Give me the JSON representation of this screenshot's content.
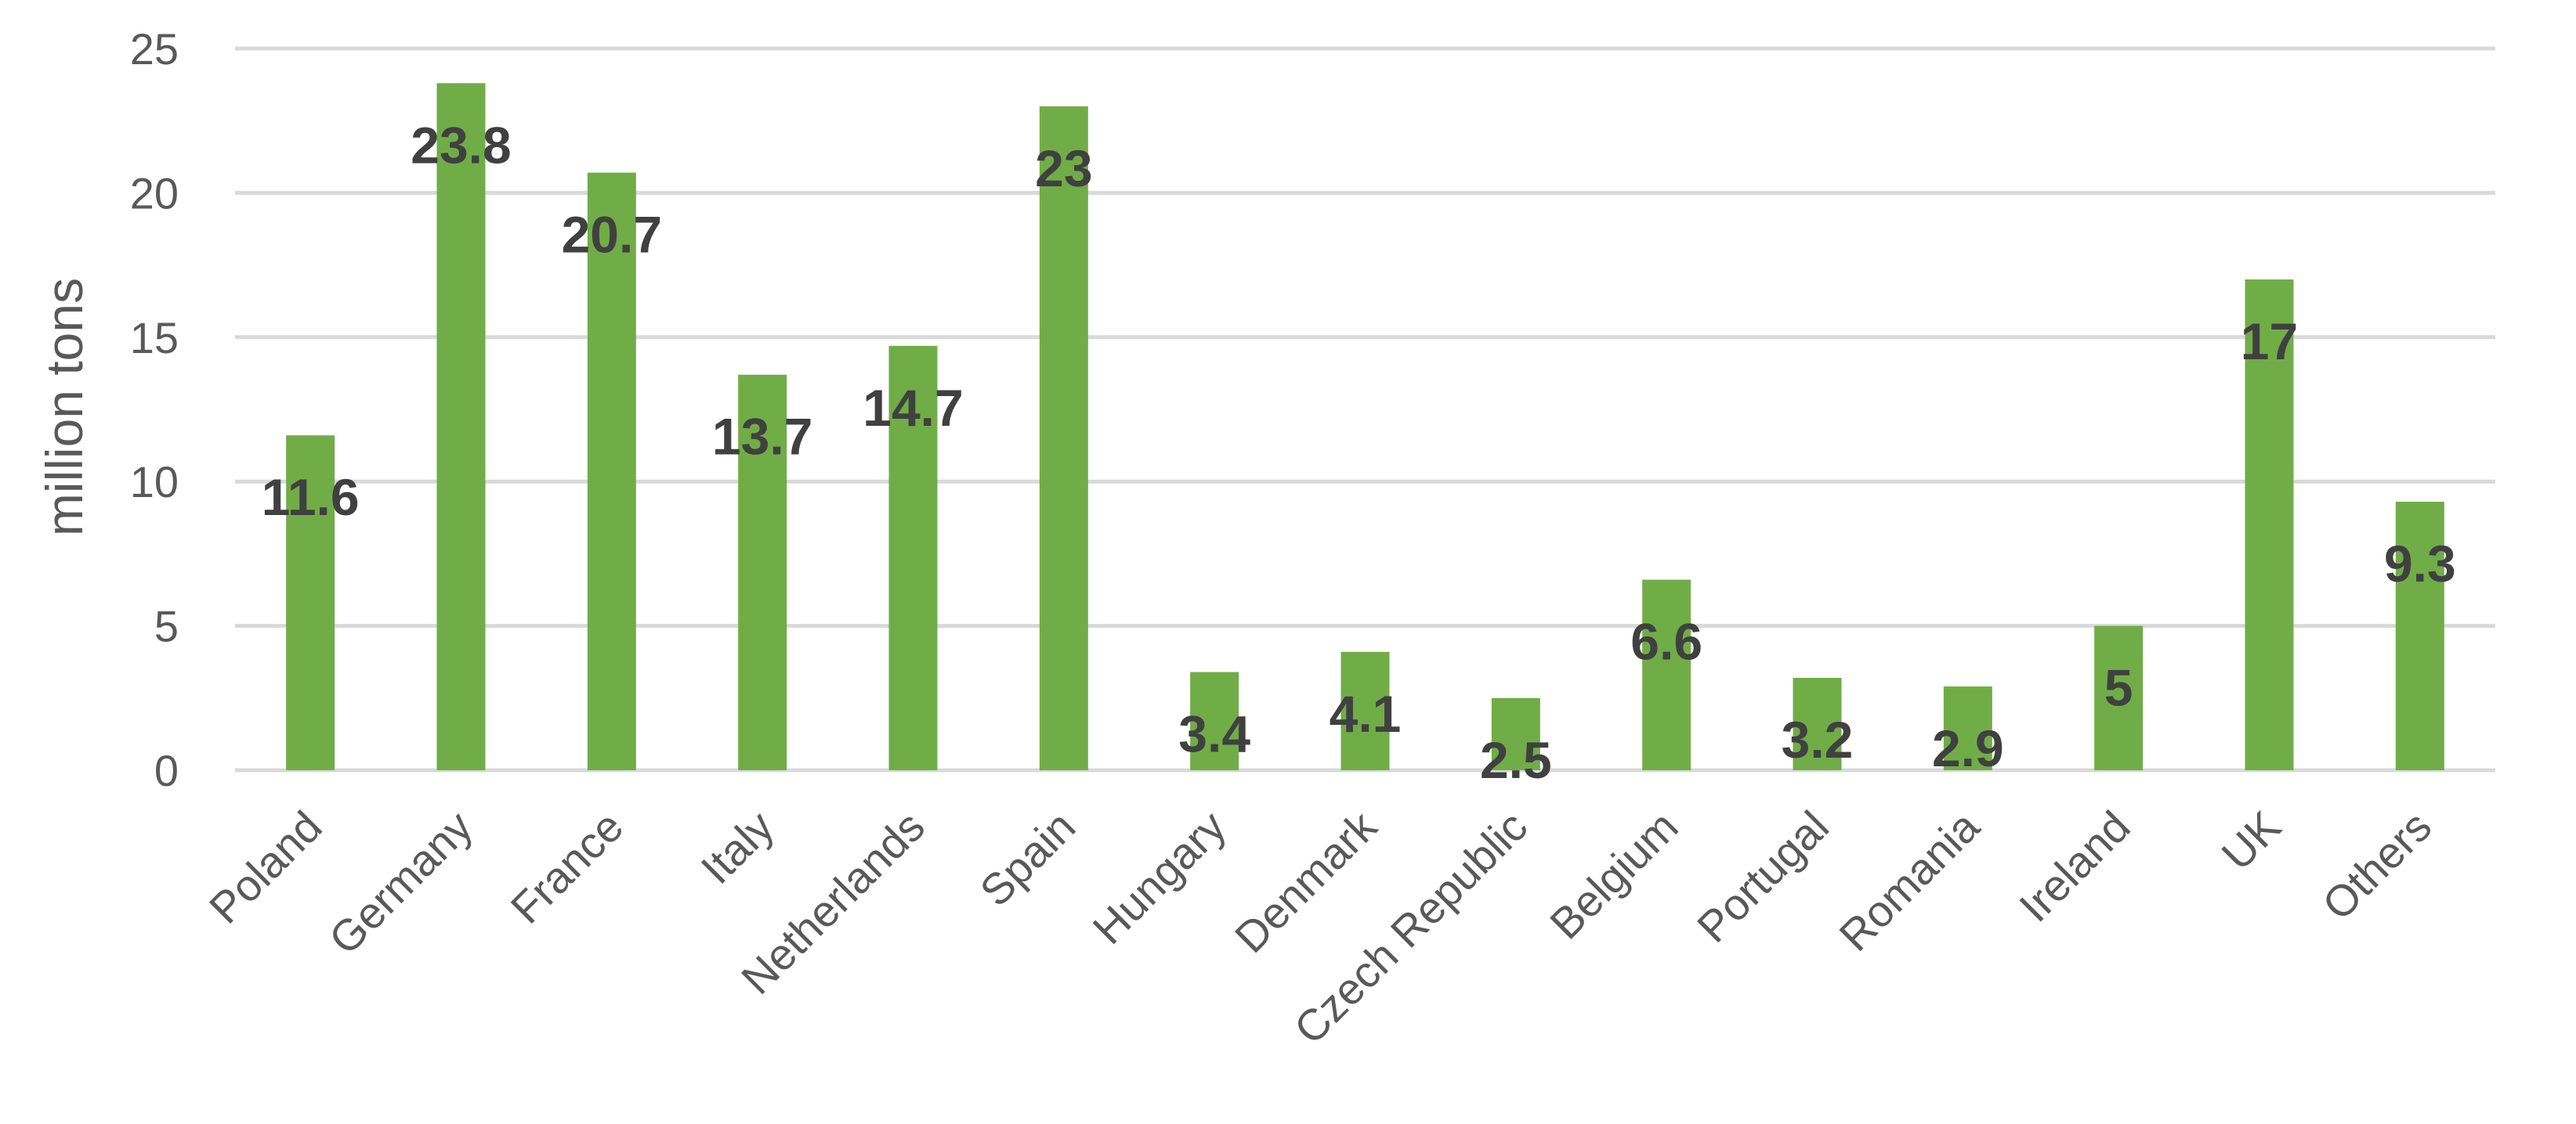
{
  "chart_data": {
    "type": "bar",
    "title": "",
    "xlabel": "",
    "ylabel": "million tons",
    "ylim": [
      0,
      25
    ],
    "yticks": [
      0,
      5,
      10,
      15,
      20,
      25
    ],
    "grid": true,
    "bar_color": "#70AD47",
    "categories": [
      "Poland",
      "Germany",
      "France",
      "Italy",
      "Netherlands",
      "Spain",
      "Hungary",
      "Denmark",
      "Czech Republic",
      "Belgium",
      "Portugal",
      "Romania",
      "Ireland",
      "UK",
      "Others"
    ],
    "values": [
      11.6,
      23.8,
      20.7,
      13.7,
      14.7,
      23,
      3.4,
      4.1,
      2.5,
      6.6,
      3.2,
      2.9,
      5,
      17,
      9.3
    ],
    "data_labels": [
      "11.6",
      "23.8",
      "20.7",
      "13.7",
      "14.7",
      "23",
      "3.4",
      "4.1",
      "2.5",
      "6.6",
      "3.2",
      "2.9",
      "5",
      "17",
      "9.3"
    ]
  }
}
